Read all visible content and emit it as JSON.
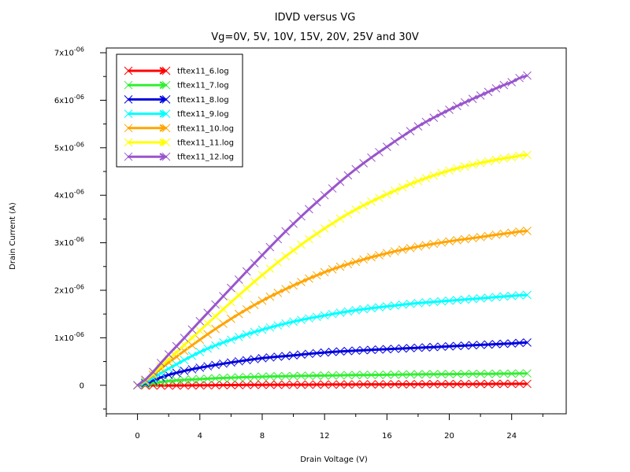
{
  "chart_data": {
    "type": "line",
    "title": "IDVD versus VG",
    "subtitle": "Vg=0V, 5V, 10V, 15V, 20V, 25V and 30V",
    "xlabel": "Drain Voltage (V)",
    "ylabel": "Drain Current (A)",
    "xlim": [
      -2,
      27.5
    ],
    "ylim": [
      -6e-07,
      7.1e-06
    ],
    "x_ticks": [
      {
        "value": 0,
        "label": "0"
      },
      {
        "value": 4,
        "label": "4"
      },
      {
        "value": 8,
        "label": "8"
      },
      {
        "value": 12,
        "label": "12"
      },
      {
        "value": 16,
        "label": "16"
      },
      {
        "value": 20,
        "label": "20"
      },
      {
        "value": 24,
        "label": "24"
      }
    ],
    "y_ticks": [
      {
        "value": 0,
        "label": "0",
        "mant": "",
        "exp": ""
      },
      {
        "value": 1e-06,
        "label": "",
        "mant": "1x10",
        "exp": "-06"
      },
      {
        "value": 2e-06,
        "label": "",
        "mant": "2x10",
        "exp": "-06"
      },
      {
        "value": 3e-06,
        "label": "",
        "mant": "3x10",
        "exp": "-06"
      },
      {
        "value": 4e-06,
        "label": "",
        "mant": "4x10",
        "exp": "-06"
      },
      {
        "value": 5e-06,
        "label": "",
        "mant": "5x10",
        "exp": "-06"
      },
      {
        "value": 6e-06,
        "label": "",
        "mant": "6x10",
        "exp": "-06"
      },
      {
        "value": 7e-06,
        "label": "",
        "mant": "7x10",
        "exp": "-06"
      }
    ],
    "grid": false,
    "legend_position": "top-left",
    "marker": "x",
    "x": [
      0,
      2,
      4,
      6,
      8,
      10,
      12,
      14,
      16,
      18,
      20,
      22,
      24,
      25
    ],
    "series": [
      {
        "name": "tftex11_6.log",
        "color": "#ff0000",
        "values": [
          0,
          -5e-09,
          0,
          5e-09,
          1e-08,
          1.2e-08,
          1.5e-08,
          1.8e-08,
          2e-08,
          2.2e-08,
          2.5e-08,
          2.7e-08,
          3e-08,
          3e-08
        ]
      },
      {
        "name": "tftex11_7.log",
        "color": "#33ee33",
        "values": [
          0,
          9e-08,
          1.3e-07,
          1.6e-07,
          1.8e-07,
          1.95e-07,
          2.05e-07,
          2.15e-07,
          2.22e-07,
          2.3e-07,
          2.35e-07,
          2.4e-07,
          2.45e-07,
          2.5e-07
        ]
      },
      {
        "name": "tftex11_8.log",
        "color": "#0000dd",
        "values": [
          0,
          2.2e-07,
          3.7e-07,
          4.8e-07,
          5.7e-07,
          6.3e-07,
          6.9e-07,
          7.3e-07,
          7.6e-07,
          7.9e-07,
          8.2e-07,
          8.5e-07,
          8.8e-07,
          9e-07
        ]
      },
      {
        "name": "tftex11_9.log",
        "color": "#00ffff",
        "values": [
          0,
          3.5e-07,
          7e-07,
          9.6e-07,
          1.17e-06,
          1.34e-06,
          1.47e-06,
          1.58e-06,
          1.66e-06,
          1.73e-06,
          1.78e-06,
          1.83e-06,
          1.88e-06,
          1.9e-06
        ]
      },
      {
        "name": "tftex11_10.log",
        "color": "#ffa500",
        "values": [
          0,
          4.8e-07,
          9.6e-07,
          1.4e-06,
          1.78e-06,
          2.1e-06,
          2.38e-06,
          2.6e-06,
          2.78e-06,
          2.92e-06,
          3.03e-06,
          3.12e-06,
          3.21e-06,
          3.25e-06
        ]
      },
      {
        "name": "tftex11_11.log",
        "color": "#ffff00",
        "values": [
          0,
          5.5e-07,
          1.15e-06,
          1.75e-06,
          2.32e-06,
          2.84e-06,
          3.3e-06,
          3.7e-06,
          4.02e-06,
          4.3e-06,
          4.52e-06,
          4.68e-06,
          4.8e-06,
          4.85e-06
        ]
      },
      {
        "name": "tftex11_12.log",
        "color": "#9955cc",
        "values": [
          0,
          6.5e-07,
          1.35e-06,
          2.05e-06,
          2.74e-06,
          3.4e-06,
          4e-06,
          4.55e-06,
          5.02e-06,
          5.45e-06,
          5.8e-06,
          6.1e-06,
          6.38e-06,
          6.52e-06
        ]
      }
    ]
  }
}
